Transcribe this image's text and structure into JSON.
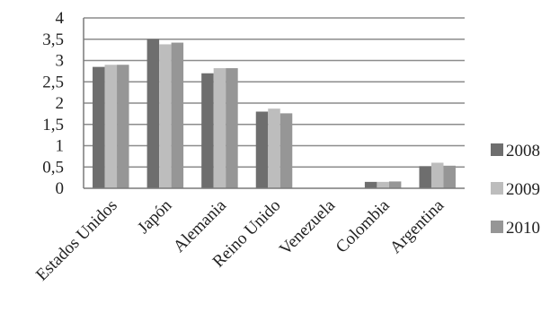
{
  "chart_data": {
    "type": "bar",
    "categories": [
      "Estados Unidos",
      "Japón",
      "Alemania",
      "Reino Unido",
      "Venezuela",
      "Colombia",
      "Argentina"
    ],
    "series": [
      {
        "name": "2008",
        "color": "#6e6e6e",
        "values": [
          2.85,
          3.5,
          2.7,
          1.8,
          0,
          0.15,
          0.52
        ]
      },
      {
        "name": "2009",
        "color": "#bdbdbd",
        "values": [
          2.9,
          3.38,
          2.82,
          1.87,
          0,
          0.15,
          0.6
        ]
      },
      {
        "name": "2010",
        "color": "#969696",
        "values": [
          2.9,
          3.42,
          2.82,
          1.76,
          0,
          0.16,
          0.53
        ]
      }
    ],
    "yticks": [
      "0",
      "0,5",
      "1",
      "1,5",
      "2",
      "2,5",
      "3",
      "3,5",
      "4"
    ],
    "ylim": [
      0,
      4
    ],
    "grid": true,
    "legend_position": "right",
    "title": "",
    "xlabel": "",
    "ylabel": ""
  }
}
